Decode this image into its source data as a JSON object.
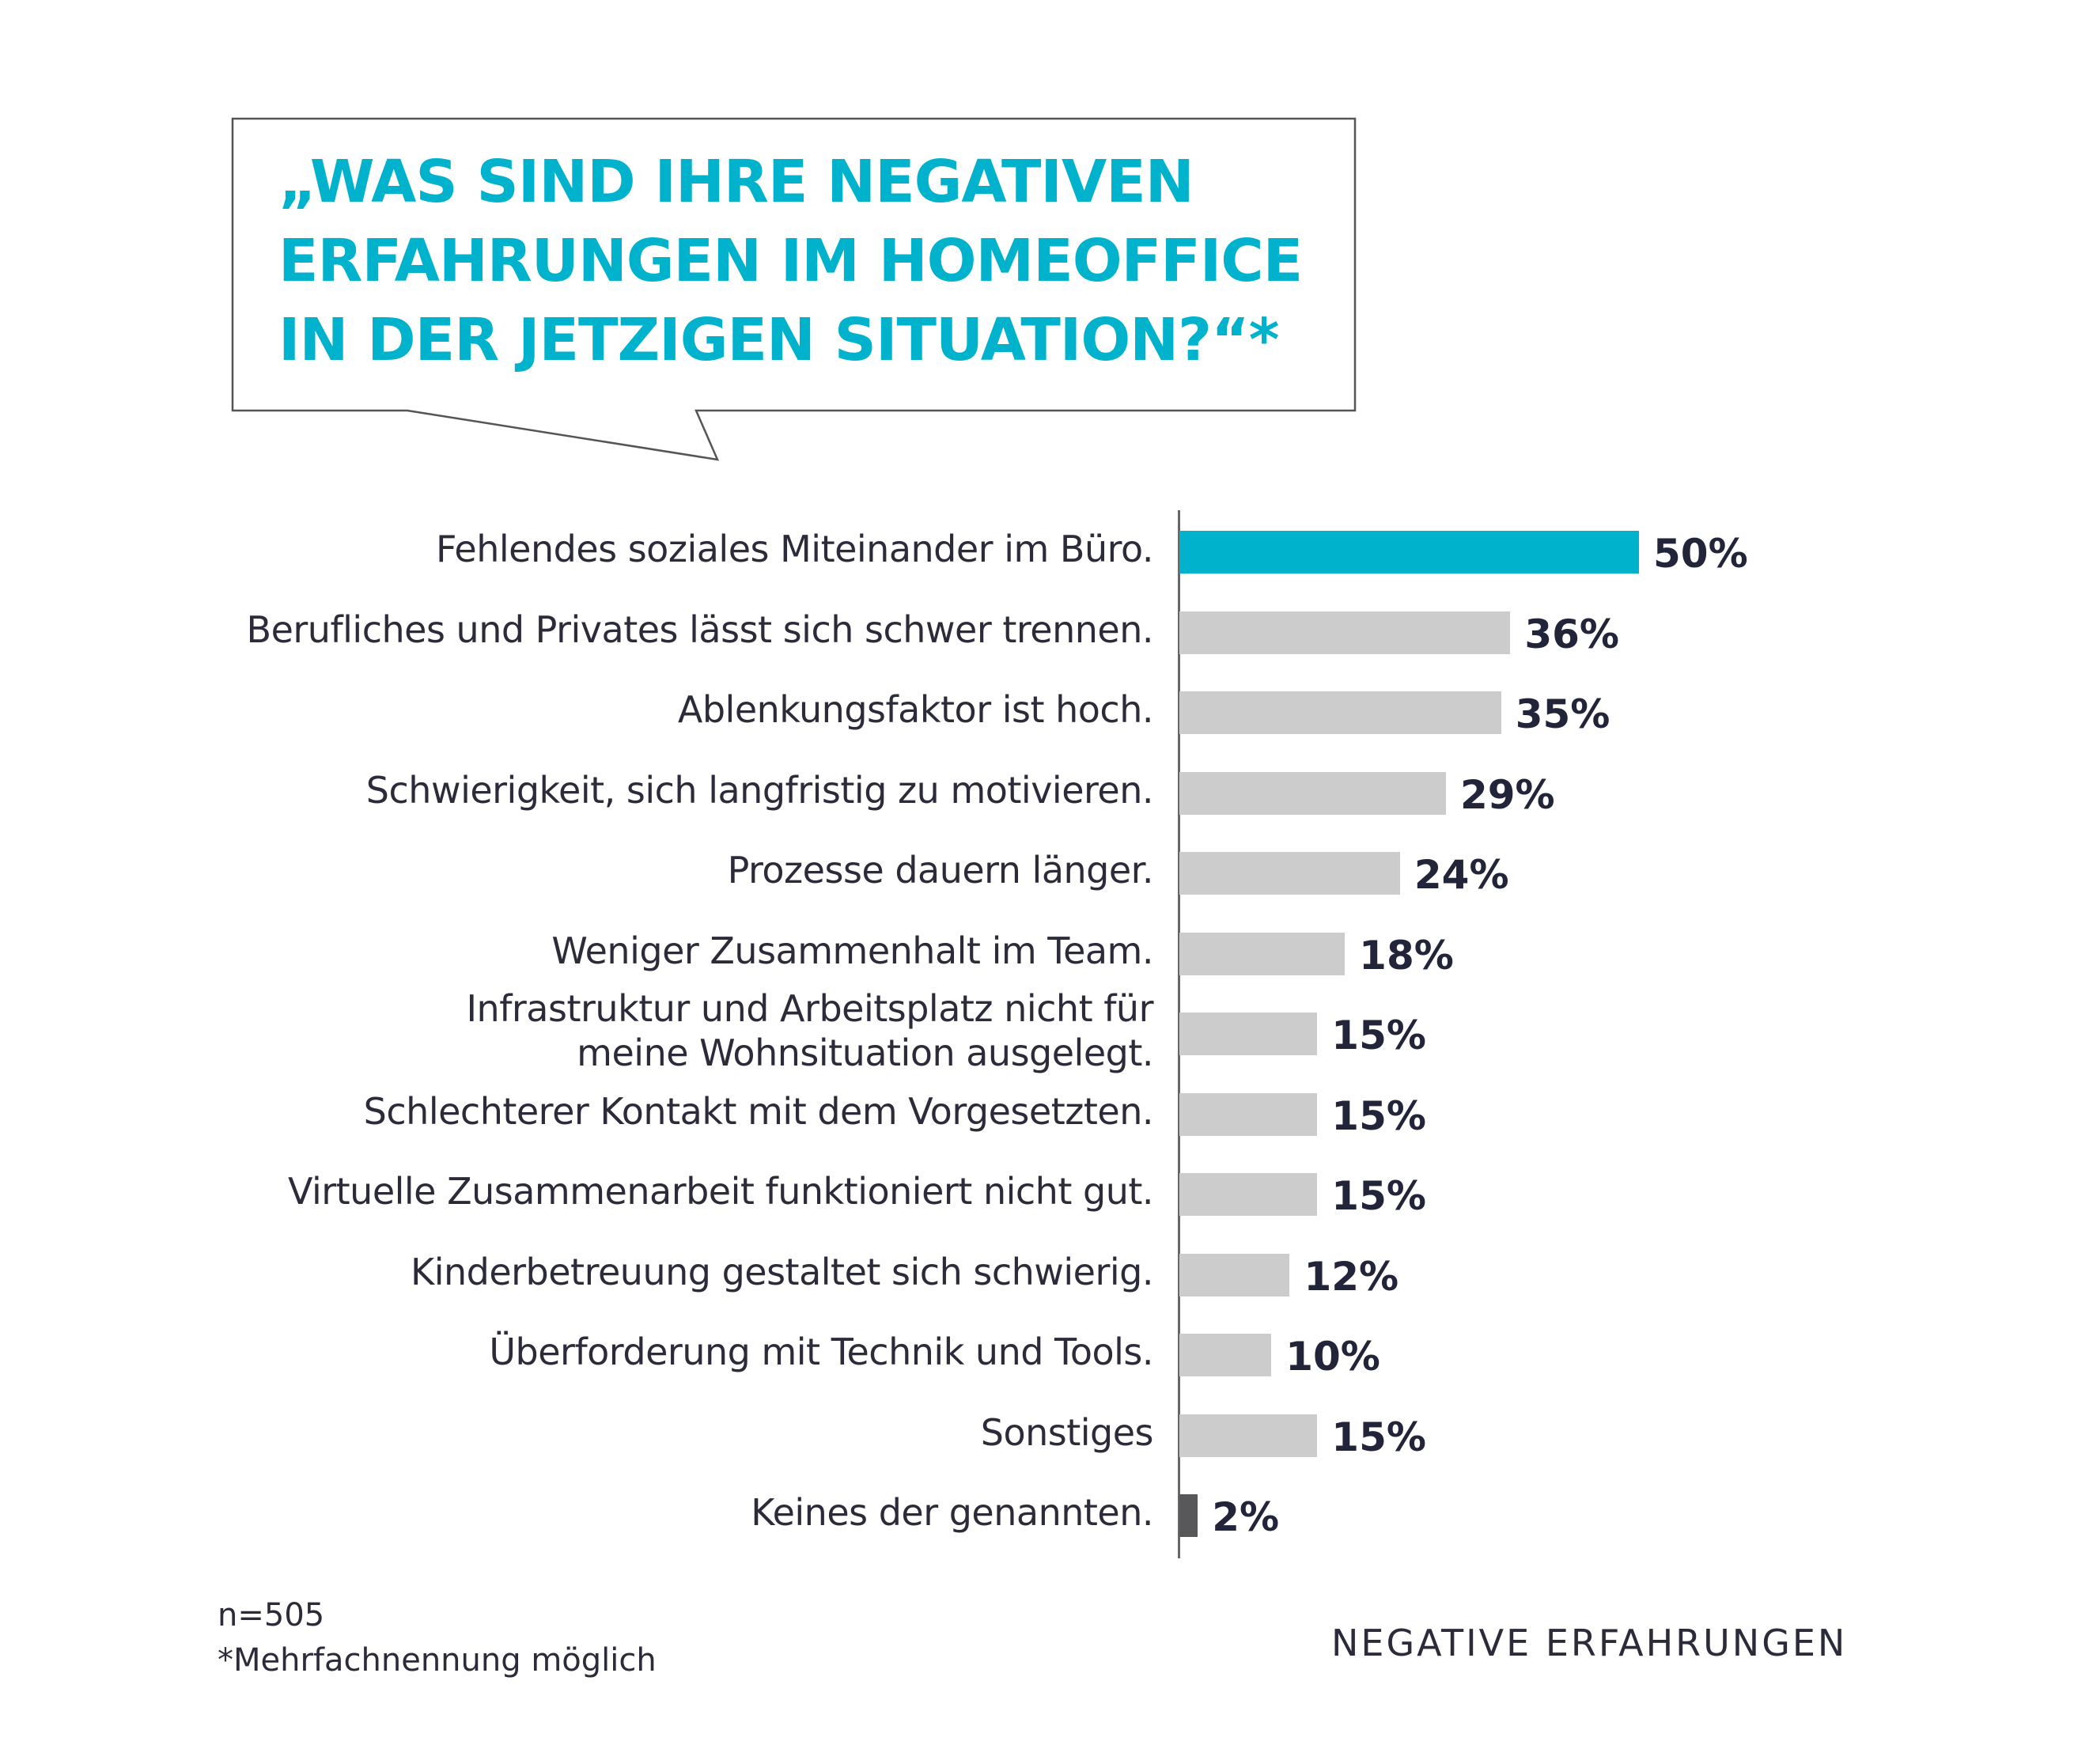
{
  "question": {
    "lines": [
      "„WAS SIND IHRE NEGATIVEN",
      "ERFAHRUNGEN IM HOMEOFFICE",
      "IN DER JETZIGEN SITUATION?“*"
    ]
  },
  "colors": {
    "accent": "#00b2cc",
    "bar_default": "#cccccc",
    "bar_none": "#58585a",
    "text": "#22253a"
  },
  "chart_data": {
    "type": "bar",
    "orientation": "horizontal",
    "categories": [
      "Fehlendes soziales Miteinander im Büro.",
      "Berufliches und Privates lässt sich schwer trennen.",
      "Ablenkungsfaktor ist hoch.",
      "Schwierigkeit, sich langfristig zu motivieren.",
      "Prozesse dauern länger.",
      "Weniger Zusammenhalt im Team.",
      "Infrastruktur und Arbeitsplatz nicht für\nmeine Wohnsituation ausgelegt.",
      "Schlechterer Kontakt mit dem Vorgesetzten.",
      "Virtuelle Zusammenarbeit funktioniert nicht gut.",
      "Kinderbetreuung gestaltet sich schwierig.",
      "Überforderung mit Technik und Tools.",
      "Sonstiges",
      "Keines der genannten."
    ],
    "values": [
      50,
      36,
      35,
      29,
      24,
      18,
      15,
      15,
      15,
      12,
      10,
      15,
      2
    ],
    "value_labels": [
      "50%",
      "36%",
      "35%",
      "29%",
      "24%",
      "18%",
      "15%",
      "15%",
      "15%",
      "12%",
      "10%",
      "15%",
      "2%"
    ],
    "bar_colors": [
      "#00b2cc",
      "#cccccc",
      "#cccccc",
      "#cccccc",
      "#cccccc",
      "#cccccc",
      "#cccccc",
      "#cccccc",
      "#cccccc",
      "#cccccc",
      "#cccccc",
      "#cccccc",
      "#58585a"
    ],
    "xlim": [
      0,
      50
    ],
    "grid": false,
    "legend": "none"
  },
  "footnotes": {
    "n": "n=505",
    "multiple": "*Mehrfachnennung möglich"
  },
  "caption": "NEGATIVE ERFAHRUNGEN"
}
